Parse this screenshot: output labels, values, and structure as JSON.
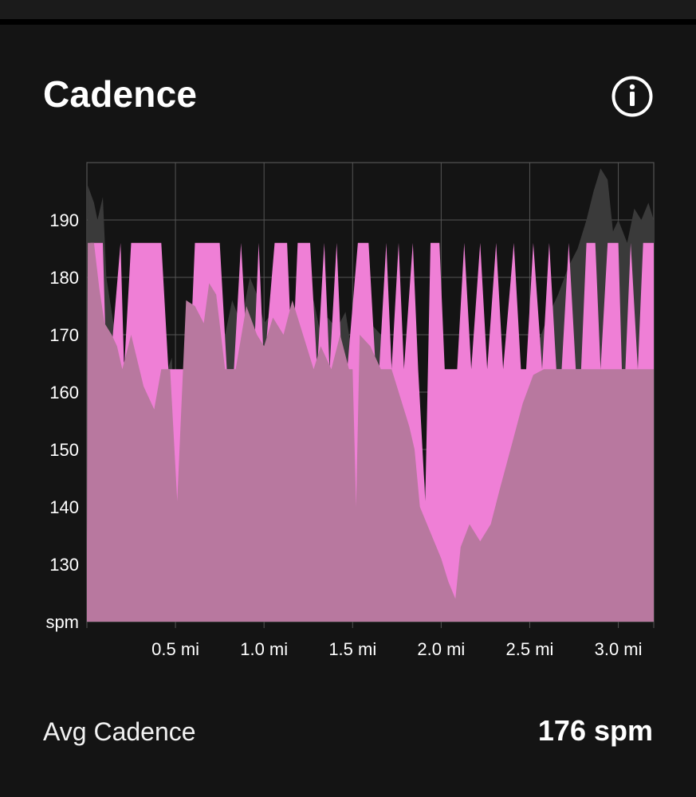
{
  "header": {
    "title": "Cadence"
  },
  "icons": {
    "info": "info-icon"
  },
  "summary": {
    "avg_label": "Avg Cadence",
    "avg_value": "176 spm"
  },
  "colors": {
    "background": "#141414",
    "pace_fill": "#ef7fd6",
    "cadence_fill": "#b8789f",
    "shadow_fill": "#3a3a3a",
    "grid": "#555555",
    "text": "#ffffff"
  },
  "chart_data": {
    "type": "area",
    "xlabel": "",
    "ylabel": "spm",
    "xlim": [
      0,
      3.2
    ],
    "ylim": [
      120,
      200
    ],
    "y_ticks": [
      190,
      180,
      170,
      160,
      150,
      140,
      130
    ],
    "y_unit_label": "spm",
    "x_ticks": [
      {
        "value": 0.5,
        "label": "0.5 mi"
      },
      {
        "value": 1.0,
        "label": "1.0 mi"
      },
      {
        "value": 1.5,
        "label": "1.5 mi"
      },
      {
        "value": 2.0,
        "label": "2.0 mi"
      },
      {
        "value": 2.5,
        "label": "2.5 mi"
      },
      {
        "value": 3.0,
        "label": "3.0 mi"
      }
    ],
    "grid": true,
    "series": [
      {
        "role": "shadow",
        "points": [
          [
            0.0,
            131
          ],
          [
            0.005,
            196
          ],
          [
            0.04,
            193
          ],
          [
            0.06,
            190
          ],
          [
            0.09,
            194
          ],
          [
            0.11,
            180
          ],
          [
            0.15,
            172
          ],
          [
            0.18,
            166
          ],
          [
            0.22,
            160
          ],
          [
            0.25,
            164
          ],
          [
            0.3,
            163
          ],
          [
            0.36,
            158
          ],
          [
            0.42,
            161
          ],
          [
            0.48,
            166
          ],
          [
            0.51,
            141
          ],
          [
            0.56,
            174
          ],
          [
            0.61,
            176
          ],
          [
            0.66,
            173
          ],
          [
            0.69,
            179
          ],
          [
            0.73,
            176
          ],
          [
            0.78,
            170
          ],
          [
            0.82,
            176
          ],
          [
            0.87,
            172
          ],
          [
            0.92,
            180
          ],
          [
            0.96,
            177
          ],
          [
            1.0,
            172
          ],
          [
            1.05,
            174
          ],
          [
            1.1,
            171
          ],
          [
            1.16,
            175
          ],
          [
            1.22,
            172
          ],
          [
            1.28,
            176
          ],
          [
            1.32,
            170
          ],
          [
            1.36,
            173
          ],
          [
            1.41,
            171
          ],
          [
            1.46,
            174
          ],
          [
            1.5,
            166
          ],
          [
            1.52,
            140
          ],
          [
            1.54,
            170
          ],
          [
            1.6,
            172
          ],
          [
            1.66,
            170
          ],
          [
            1.72,
            165
          ],
          [
            1.78,
            158
          ],
          [
            1.84,
            153
          ],
          [
            1.88,
            151
          ],
          [
            1.92,
            141
          ],
          [
            1.96,
            136
          ],
          [
            2.0,
            131
          ],
          [
            2.04,
            122
          ],
          [
            2.07,
            122
          ],
          [
            2.1,
            129
          ],
          [
            2.15,
            137
          ],
          [
            2.22,
            136
          ],
          [
            2.28,
            144
          ],
          [
            2.35,
            150
          ],
          [
            2.42,
            157
          ],
          [
            2.48,
            162
          ],
          [
            2.54,
            168
          ],
          [
            2.6,
            173
          ],
          [
            2.66,
            177
          ],
          [
            2.72,
            182
          ],
          [
            2.77,
            185
          ],
          [
            2.82,
            190
          ],
          [
            2.86,
            195
          ],
          [
            2.9,
            199
          ],
          [
            2.94,
            197
          ],
          [
            2.97,
            188
          ],
          [
            3.0,
            190
          ],
          [
            3.05,
            186
          ],
          [
            3.09,
            192
          ],
          [
            3.13,
            190
          ],
          [
            3.17,
            193
          ],
          [
            3.2,
            190
          ]
        ]
      },
      {
        "name": "",
        "role": "pink",
        "points": [
          [
            0.0,
            130
          ],
          [
            0.02,
            186
          ],
          [
            0.09,
            186
          ],
          [
            0.11,
            164
          ],
          [
            0.13,
            164
          ],
          [
            0.19,
            186
          ],
          [
            0.21,
            164
          ],
          [
            0.25,
            186
          ],
          [
            0.42,
            186
          ],
          [
            0.46,
            164
          ],
          [
            0.58,
            164
          ],
          [
            0.61,
            186
          ],
          [
            0.75,
            186
          ],
          [
            0.79,
            164
          ],
          [
            0.83,
            164
          ],
          [
            0.87,
            186
          ],
          [
            0.91,
            164
          ],
          [
            0.94,
            164
          ],
          [
            0.97,
            186
          ],
          [
            1.0,
            164
          ],
          [
            1.06,
            186
          ],
          [
            1.13,
            186
          ],
          [
            1.16,
            164
          ],
          [
            1.19,
            186
          ],
          [
            1.26,
            186
          ],
          [
            1.3,
            164
          ],
          [
            1.34,
            186
          ],
          [
            1.37,
            164
          ],
          [
            1.41,
            186
          ],
          [
            1.44,
            164
          ],
          [
            1.47,
            164
          ],
          [
            1.53,
            186
          ],
          [
            1.59,
            186
          ],
          [
            1.63,
            164
          ],
          [
            1.65,
            164
          ],
          [
            1.69,
            186
          ],
          [
            1.72,
            164
          ],
          [
            1.76,
            186
          ],
          [
            1.79,
            164
          ],
          [
            1.84,
            186
          ],
          [
            1.87,
            164
          ],
          [
            1.91,
            141
          ],
          [
            1.94,
            186
          ],
          [
            1.99,
            186
          ],
          [
            2.02,
            164
          ],
          [
            2.09,
            164
          ],
          [
            2.13,
            186
          ],
          [
            2.17,
            164
          ],
          [
            2.22,
            186
          ],
          [
            2.26,
            164
          ],
          [
            2.31,
            186
          ],
          [
            2.35,
            164
          ],
          [
            2.41,
            186
          ],
          [
            2.45,
            164
          ],
          [
            2.48,
            164
          ],
          [
            2.52,
            186
          ],
          [
            2.57,
            164
          ],
          [
            2.61,
            186
          ],
          [
            2.65,
            164
          ],
          [
            2.68,
            164
          ],
          [
            2.72,
            186
          ],
          [
            2.76,
            164
          ],
          [
            2.79,
            164
          ],
          [
            2.82,
            186
          ],
          [
            2.87,
            186
          ],
          [
            2.9,
            164
          ],
          [
            2.94,
            186
          ],
          [
            3.0,
            186
          ],
          [
            3.02,
            164
          ],
          [
            3.04,
            164
          ],
          [
            3.07,
            186
          ],
          [
            3.11,
            164
          ],
          [
            3.14,
            186
          ],
          [
            3.2,
            186
          ]
        ]
      },
      {
        "name": "",
        "role": "cadence",
        "points": [
          [
            0.0,
            131
          ],
          [
            0.005,
            186
          ],
          [
            0.04,
            186
          ],
          [
            0.07,
            178
          ],
          [
            0.1,
            172
          ],
          [
            0.14,
            170
          ],
          [
            0.17,
            168
          ],
          [
            0.2,
            164
          ],
          [
            0.25,
            170
          ],
          [
            0.32,
            161
          ],
          [
            0.38,
            157
          ],
          [
            0.42,
            164
          ],
          [
            0.47,
            164
          ],
          [
            0.51,
            141
          ],
          [
            0.56,
            176
          ],
          [
            0.61,
            175
          ],
          [
            0.66,
            172
          ],
          [
            0.69,
            179
          ],
          [
            0.73,
            177
          ],
          [
            0.78,
            164
          ],
          [
            0.84,
            164
          ],
          [
            0.9,
            175
          ],
          [
            0.96,
            170
          ],
          [
            1.0,
            168
          ],
          [
            1.05,
            173
          ],
          [
            1.11,
            170
          ],
          [
            1.16,
            176
          ],
          [
            1.22,
            170
          ],
          [
            1.28,
            164
          ],
          [
            1.32,
            168
          ],
          [
            1.38,
            164
          ],
          [
            1.43,
            170
          ],
          [
            1.48,
            164
          ],
          [
            1.5,
            164
          ],
          [
            1.52,
            140
          ],
          [
            1.54,
            170
          ],
          [
            1.6,
            168
          ],
          [
            1.66,
            164
          ],
          [
            1.72,
            164
          ],
          [
            1.78,
            158
          ],
          [
            1.82,
            154
          ],
          [
            1.85,
            150
          ],
          [
            1.88,
            140
          ],
          [
            1.92,
            137
          ],
          [
            1.96,
            134
          ],
          [
            2.0,
            131
          ],
          [
            2.04,
            127
          ],
          [
            2.08,
            124
          ],
          [
            2.11,
            133
          ],
          [
            2.16,
            137
          ],
          [
            2.22,
            134
          ],
          [
            2.28,
            137
          ],
          [
            2.33,
            143
          ],
          [
            2.4,
            151
          ],
          [
            2.46,
            158
          ],
          [
            2.52,
            163
          ],
          [
            2.58,
            164
          ],
          [
            2.66,
            164
          ],
          [
            2.74,
            164
          ],
          [
            2.82,
            164
          ],
          [
            2.9,
            164
          ],
          [
            2.98,
            164
          ],
          [
            3.06,
            164
          ],
          [
            3.14,
            164
          ],
          [
            3.2,
            164
          ]
        ]
      }
    ]
  }
}
